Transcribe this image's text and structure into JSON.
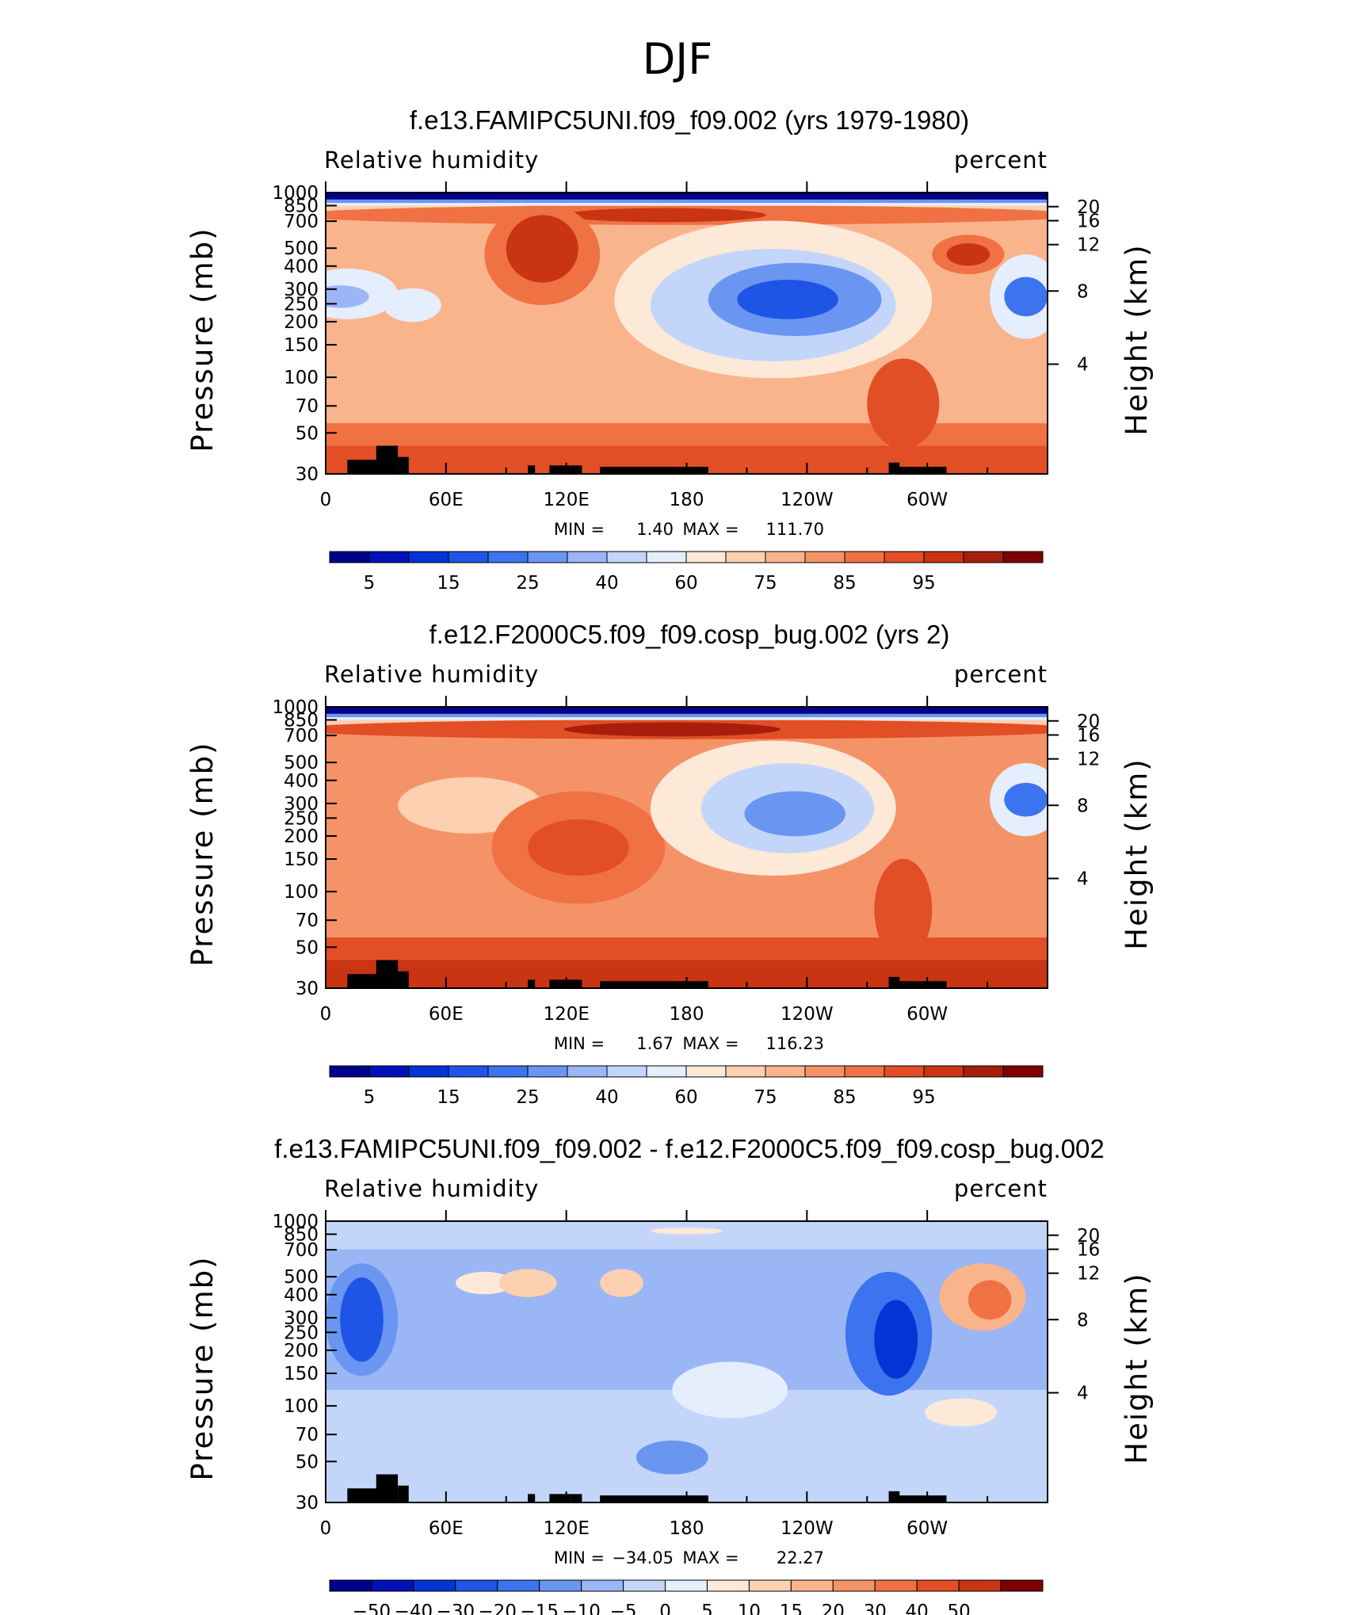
{
  "figure": {
    "title": "DJF"
  },
  "chart_data": [
    {
      "type": "heatmap",
      "title": "f.e13.FAMIPC5UNI.f09_f09.002 (yrs 1979-1980)",
      "variable": "Relative humidity",
      "units": "percent",
      "ylabel": "Pressure (mb)",
      "ylabel_right": "Height (km)",
      "x_ticks": [
        "0",
        "60E",
        "120E",
        "180",
        "120W",
        "60W"
      ],
      "y_ticks": [
        "30",
        "50",
        "70",
        "100",
        "150",
        "200",
        "250",
        "300",
        "400",
        "500",
        "700",
        "850",
        "1000"
      ],
      "height_ticks": [
        "20",
        "16",
        "12",
        "8",
        "4"
      ],
      "min_label": "MIN =",
      "min": "1.40",
      "max_label": "MAX =",
      "max": "111.70",
      "colorbar": {
        "ticks": [
          "5",
          "15",
          "25",
          "40",
          "60",
          "75",
          "85",
          "95"
        ],
        "colors": [
          "#00008b",
          "#0011b8",
          "#0433d6",
          "#1f55e6",
          "#3c73ee",
          "#6a96f2",
          "#9ab6f5",
          "#c3d6fa",
          "#e4eefd",
          "#fde9d8",
          "#fcd0b0",
          "#f9b48c",
          "#f59368",
          "#f07144",
          "#e24e25",
          "#c93413",
          "#a81e0c",
          "#7f0000"
        ]
      }
    },
    {
      "type": "heatmap",
      "title": "f.e12.F2000C5.f09_f09.cosp_bug.002 (yrs 2)",
      "variable": "Relative humidity",
      "units": "percent",
      "ylabel": "Pressure (mb)",
      "ylabel_right": "Height (km)",
      "x_ticks": [
        "0",
        "60E",
        "120E",
        "180",
        "120W",
        "60W"
      ],
      "y_ticks": [
        "30",
        "50",
        "70",
        "100",
        "150",
        "200",
        "250",
        "300",
        "400",
        "500",
        "700",
        "850",
        "1000"
      ],
      "height_ticks": [
        "20",
        "16",
        "12",
        "8",
        "4"
      ],
      "min_label": "MIN =",
      "min": "1.67",
      "max_label": "MAX =",
      "max": "116.23",
      "colorbar": {
        "ticks": [
          "5",
          "15",
          "25",
          "40",
          "60",
          "75",
          "85",
          "95"
        ],
        "colors": [
          "#00008b",
          "#0011b8",
          "#0433d6",
          "#1f55e6",
          "#3c73ee",
          "#6a96f2",
          "#9ab6f5",
          "#c3d6fa",
          "#e4eefd",
          "#fde9d8",
          "#fcd0b0",
          "#f9b48c",
          "#f59368",
          "#f07144",
          "#e24e25",
          "#c93413",
          "#a81e0c",
          "#7f0000"
        ]
      }
    },
    {
      "type": "heatmap",
      "title": "f.e13.FAMIPC5UNI.f09_f09.002 - f.e12.F2000C5.f09_f09.cosp_bug.002",
      "variable": "Relative humidity",
      "units": "percent",
      "ylabel": "Pressure (mb)",
      "ylabel_right": "Height (km)",
      "x_ticks": [
        "0",
        "60E",
        "120E",
        "180",
        "120W",
        "60W"
      ],
      "y_ticks": [
        "30",
        "50",
        "70",
        "100",
        "150",
        "200",
        "250",
        "300",
        "400",
        "500",
        "700",
        "850",
        "1000"
      ],
      "height_ticks": [
        "20",
        "16",
        "12",
        "8",
        "4"
      ],
      "min_label": "MIN =",
      "min": "−34.05",
      "max_label": "MAX =",
      "max": "22.27",
      "colorbar": {
        "ticks": [
          "−50",
          "−40",
          "−30",
          "−20",
          "−15",
          "−10",
          "−5",
          "0",
          "5",
          "10",
          "15",
          "20",
          "30",
          "40",
          "50"
        ],
        "colors": [
          "#00008b",
          "#0011b8",
          "#0433d6",
          "#1f55e6",
          "#3c73ee",
          "#6a96f2",
          "#9ab6f5",
          "#c3d6fa",
          "#e4eefd",
          "#fde9d8",
          "#fcd0b0",
          "#f9b48c",
          "#f59368",
          "#f07144",
          "#e24e25",
          "#c93413",
          "#7f0000"
        ]
      }
    }
  ]
}
